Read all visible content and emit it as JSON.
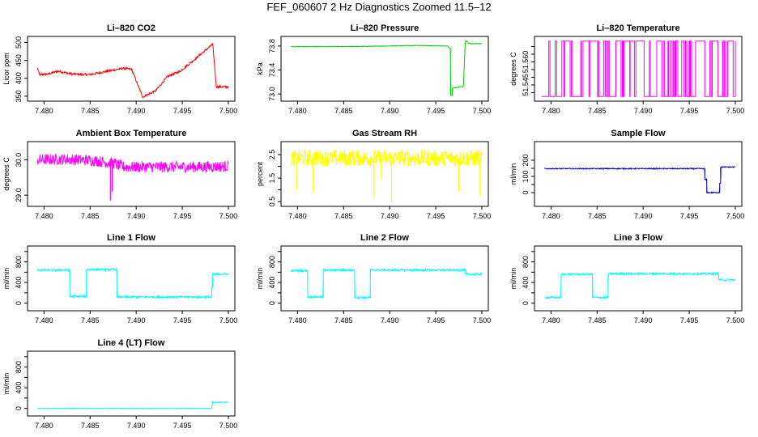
{
  "title": "FEF_060607  2 Hz Diagnostics Zoomed 11.5–12",
  "chart_data": [
    {
      "type": "line",
      "title": "Li–820 CO2",
      "ylabel": "Licor ppm",
      "color": "#ff0000",
      "xlim": [
        7.479,
        7.5
      ],
      "ylim": [
        343,
        510
      ],
      "xticks": [
        7.48,
        7.485,
        7.49,
        7.495,
        7.5
      ],
      "xtick_labels": [
        "7.480",
        "7.485",
        "7.490",
        "7.495",
        "7.500"
      ],
      "yticks": [
        350,
        400,
        450,
        500
      ],
      "ytick_labels": [
        "350",
        "400",
        "450",
        "500"
      ],
      "noise": 3,
      "x": [
        7.4793,
        7.4795,
        7.4795,
        7.4805,
        7.4805,
        7.4815,
        7.4815,
        7.483,
        7.483,
        7.4849,
        7.4849,
        7.4886,
        7.4886,
        7.4895,
        7.4895,
        7.4907,
        7.4907,
        7.4921,
        7.4921,
        7.4934,
        7.4934,
        7.4948,
        7.4948,
        7.4983,
        7.4983,
        7.4987,
        7.5
      ],
      "y": [
        428,
        410,
        410,
        412,
        412,
        420,
        420,
        412,
        412,
        410,
        410,
        428,
        428,
        425,
        425,
        348,
        348,
        365,
        365,
        405,
        405,
        420,
        420,
        495,
        495,
        376,
        376
      ]
    },
    {
      "type": "line",
      "title": "Li–820 Pressure",
      "ylabel": "kPa",
      "color": "#00cc00",
      "xlim": [
        7.479,
        7.5
      ],
      "ylim": [
        72.92,
        73.92
      ],
      "xticks": [
        7.48,
        7.485,
        7.49,
        7.495,
        7.5
      ],
      "xtick_labels": [
        "7.480",
        "7.485",
        "7.490",
        "7.495",
        "7.500"
      ],
      "yticks": [
        73.0,
        73.4,
        73.8
      ],
      "ytick_labels": [
        "73.0",
        "73.4",
        "73.8"
      ],
      "noise": 0.004,
      "x": [
        7.4793,
        7.4855,
        7.4895,
        7.493,
        7.4963,
        7.4966,
        7.4966,
        7.4968,
        7.4968,
        7.4975,
        7.4975,
        7.498,
        7.4981,
        7.4982,
        7.4983,
        7.4985,
        7.4988,
        7.5
      ],
      "y": [
        73.79,
        73.79,
        73.8,
        73.81,
        73.8,
        73.75,
        72.98,
        72.98,
        73.1,
        73.11,
        73.12,
        73.12,
        73.5,
        73.88,
        73.89,
        73.85,
        73.84,
        73.84
      ]
    },
    {
      "type": "line",
      "title": "Li–820 Temperature",
      "ylabel": "degrees C",
      "color": "#ff00ff",
      "xlim": [
        7.479,
        7.5
      ],
      "ylim": [
        51.536,
        51.575
      ],
      "xticks": [
        7.48,
        7.485,
        7.49,
        7.495,
        7.5
      ],
      "xtick_labels": [
        "7.480",
        "7.485",
        "7.490",
        "7.495",
        "7.500"
      ],
      "yticks": [
        51.545,
        51.56
      ],
      "ytick_labels": [
        "51.545",
        "51.560"
      ],
      "yticks_minor": [
        51.54,
        51.545,
        51.55,
        51.555,
        51.56,
        51.565,
        51.57
      ],
      "levels": [
        51.5375,
        51.5735
      ]
    },
    {
      "type": "line",
      "title": "Ambient Box Temperature",
      "ylabel": "degrees C",
      "color": "#ff00ff",
      "xlim": [
        7.479,
        7.5
      ],
      "ylim": [
        28.75,
        30.45
      ],
      "xticks": [
        7.48,
        7.485,
        7.49,
        7.495,
        7.5
      ],
      "xtick_labels": [
        "7.480",
        "7.485",
        "7.490",
        "7.495",
        "7.500"
      ],
      "yticks": [
        29.0,
        30.0
      ],
      "ytick_labels": [
        "29.0",
        "30.0"
      ],
      "noise": 0.16,
      "spikes": [
        [
          7.4872,
          28.85
        ],
        [
          7.4874,
          29.1
        ]
      ],
      "x": [
        7.4793,
        7.4825,
        7.4855,
        7.4876,
        7.4886,
        7.4905,
        7.4935,
        7.4965,
        7.5
      ],
      "y": [
        30.0,
        30.02,
        29.98,
        29.9,
        29.8,
        29.8,
        29.8,
        29.8,
        29.82
      ]
    },
    {
      "type": "line",
      "title": "Gas Stream RH",
      "ylabel": "percent",
      "color": "#ffff00",
      "xlim": [
        7.479,
        7.5
      ],
      "ylim": [
        0.4,
        2.95
      ],
      "xticks": [
        7.48,
        7.485,
        7.49,
        7.495,
        7.5
      ],
      "xtick_labels": [
        "7.480",
        "7.485",
        "7.490",
        "7.495",
        "7.500"
      ],
      "yticks": [
        0.5,
        1.5,
        2.5
      ],
      "ytick_labels": [
        "0.5",
        "1.5",
        "2.5"
      ],
      "yticks_minor": [
        0.5,
        1.0,
        1.5,
        2.0,
        2.5
      ],
      "noise": 0.35,
      "spikes": [
        [
          7.4799,
          1.0
        ],
        [
          7.4817,
          0.9
        ],
        [
          7.4883,
          0.65
        ],
        [
          7.4891,
          1.45
        ],
        [
          7.4902,
          0.5
        ],
        [
          7.4975,
          0.95
        ],
        [
          7.4998,
          0.75
        ]
      ],
      "x": [
        7.4793,
        7.5
      ],
      "y": [
        2.35,
        2.35
      ]
    },
    {
      "type": "line",
      "title": "Sample Flow",
      "ylabel": "ml/min",
      "color": "#0000cc",
      "xlim": [
        7.479,
        7.5
      ],
      "ylim": [
        -70,
        300
      ],
      "xticks": [
        7.48,
        7.485,
        7.49,
        7.495,
        7.5
      ],
      "xtick_labels": [
        "7.480",
        "7.485",
        "7.490",
        "7.495",
        "7.500"
      ],
      "yticks": [
        0,
        100,
        200
      ],
      "ytick_labels": [
        "0",
        "100",
        "200"
      ],
      "yticks_minor": [
        0,
        50,
        100,
        150,
        200
      ],
      "noise": 3,
      "x": [
        7.4793,
        7.4967,
        7.4967,
        7.4969,
        7.4969,
        7.4983,
        7.4983,
        7.4984,
        7.4984,
        7.5
      ],
      "y": [
        148,
        148,
        80,
        80,
        0,
        0,
        60,
        60,
        158,
        158
      ]
    },
    {
      "type": "line",
      "title": "Line 1 Flow",
      "ylabel": "ml/min",
      "color": "#00ffff",
      "xlim": [
        7.479,
        7.5
      ],
      "ylim": [
        -100,
        1060
      ],
      "xticks": [
        7.48,
        7.485,
        7.49,
        7.495,
        7.5
      ],
      "xtick_labels": [
        "7.480",
        "7.485",
        "7.490",
        "7.495",
        "7.500"
      ],
      "yticks": [
        0,
        400,
        800
      ],
      "ytick_labels": [
        "0",
        "400",
        "800"
      ],
      "yticks_minor": [
        0,
        200,
        400,
        600,
        800,
        1000
      ],
      "noise": 20,
      "x": [
        7.4793,
        7.4828,
        7.4828,
        7.4846,
        7.4846,
        7.4879,
        7.4879,
        7.4982,
        7.4982,
        7.4983,
        7.4983,
        7.5
      ],
      "y": [
        640,
        640,
        130,
        130,
        650,
        650,
        120,
        120,
        300,
        300,
        560,
        560
      ]
    },
    {
      "type": "line",
      "title": "Line 2 Flow",
      "ylabel": "ml/min",
      "color": "#00ffff",
      "xlim": [
        7.479,
        7.5
      ],
      "ylim": [
        -100,
        1060
      ],
      "xticks": [
        7.48,
        7.485,
        7.49,
        7.495,
        7.5
      ],
      "xtick_labels": [
        "7.480",
        "7.485",
        "7.490",
        "7.495",
        "7.500"
      ],
      "yticks": [
        0,
        400,
        800
      ],
      "ytick_labels": [
        "0",
        "400",
        "800"
      ],
      "yticks_minor": [
        0,
        200,
        400,
        600,
        800,
        1000
      ],
      "noise": 20,
      "x": [
        7.4793,
        7.4811,
        7.4811,
        7.4828,
        7.4828,
        7.4862,
        7.4862,
        7.4879,
        7.4879,
        7.4982,
        7.4982,
        7.5
      ],
      "y": [
        630,
        630,
        120,
        120,
        640,
        640,
        110,
        110,
        640,
        640,
        560,
        560
      ]
    },
    {
      "type": "line",
      "title": "Line 3 Flow",
      "ylabel": "ml/min",
      "color": "#00ffff",
      "xlim": [
        7.479,
        7.5
      ],
      "ylim": [
        -100,
        1060
      ],
      "xticks": [
        7.48,
        7.485,
        7.49,
        7.495,
        7.5
      ],
      "xtick_labels": [
        "7.480",
        "7.485",
        "7.490",
        "7.495",
        "7.500"
      ],
      "yticks": [
        0,
        400,
        800
      ],
      "ytick_labels": [
        "0",
        "400",
        "800"
      ],
      "yticks_minor": [
        0,
        200,
        400,
        600,
        800,
        1000
      ],
      "noise": 18,
      "x": [
        7.4793,
        7.4811,
        7.4811,
        7.4845,
        7.4845,
        7.4862,
        7.4862,
        7.4982,
        7.4982,
        7.5
      ],
      "y": [
        110,
        110,
        560,
        560,
        110,
        110,
        570,
        570,
        450,
        450
      ]
    },
    {
      "type": "line",
      "title": "Line 4 (LT) Flow",
      "ylabel": "ml/min",
      "color": "#00ffff",
      "xlim": [
        7.479,
        7.5
      ],
      "ylim": [
        -100,
        1060
      ],
      "xticks": [
        7.48,
        7.485,
        7.49,
        7.495,
        7.5
      ],
      "xtick_labels": [
        "7.480",
        "7.485",
        "7.490",
        "7.495",
        "7.500"
      ],
      "yticks": [
        0,
        400,
        800
      ],
      "ytick_labels": [
        "0",
        "400",
        "800"
      ],
      "yticks_minor": [
        0,
        200,
        400,
        600,
        800,
        1000
      ],
      "noise": 6,
      "x": [
        7.4793,
        7.4982,
        7.4983,
        7.4984,
        7.5
      ],
      "y": [
        0,
        0,
        140,
        115,
        120
      ]
    }
  ]
}
